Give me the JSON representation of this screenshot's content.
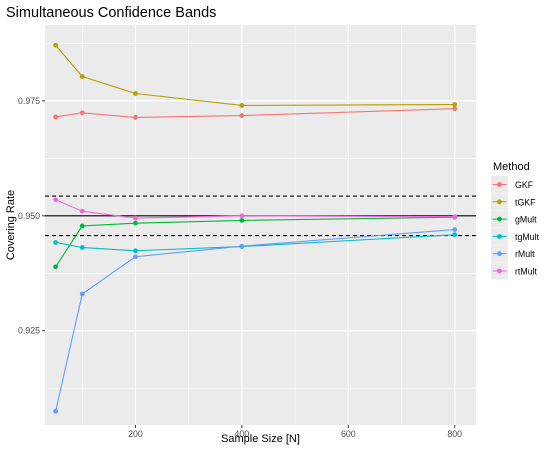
{
  "chart_data": {
    "type": "line",
    "title": "Simultaneous Confidence Bands",
    "xlabel": "Sample Size [N]",
    "ylabel": "Covering Rate",
    "x": [
      50,
      100,
      200,
      400,
      800
    ],
    "xlim": [
      30,
      840
    ],
    "ylim": [
      0.9045,
      0.9915
    ],
    "x_ticks": [
      200,
      400,
      600,
      800
    ],
    "x_tick_labels": [
      "200",
      "400",
      "600",
      "800"
    ],
    "y_ticks": [
      0.925,
      0.95,
      0.975
    ],
    "y_tick_labels": [
      "0.925",
      "0.950",
      "0.975"
    ],
    "grid": true,
    "background": "#ebebeb",
    "legend": {
      "title": "Method",
      "position": "right"
    },
    "reference_lines": [
      {
        "y": 0.95,
        "style": "solid",
        "color": "#000000"
      },
      {
        "y": 0.9543,
        "style": "dashed",
        "color": "#000000"
      },
      {
        "y": 0.9457,
        "style": "dashed",
        "color": "#000000"
      }
    ],
    "series": [
      {
        "name": "GKF",
        "color": "#F8766D",
        "values": [
          0.9715,
          0.9724,
          0.9714,
          0.9718,
          0.9733
        ]
      },
      {
        "name": "tGKF",
        "color": "#B79F00",
        "values": [
          0.9871,
          0.9803,
          0.9766,
          0.974,
          0.9742
        ]
      },
      {
        "name": "gMult",
        "color": "#00BA38",
        "values": [
          0.9389,
          0.9478,
          0.9484,
          0.949,
          0.9497
        ]
      },
      {
        "name": "tgMult",
        "color": "#00BFC4",
        "values": [
          0.9442,
          0.9431,
          0.9424,
          0.9433,
          0.9459
        ]
      },
      {
        "name": "rMult",
        "color": "#619CFF",
        "values": [
          0.9075,
          0.933,
          0.9411,
          0.9434,
          0.947
        ]
      },
      {
        "name": "rtMult",
        "color": "#F564E3",
        "values": [
          0.9535,
          0.951,
          0.9495,
          0.95,
          0.9498
        ]
      }
    ]
  }
}
